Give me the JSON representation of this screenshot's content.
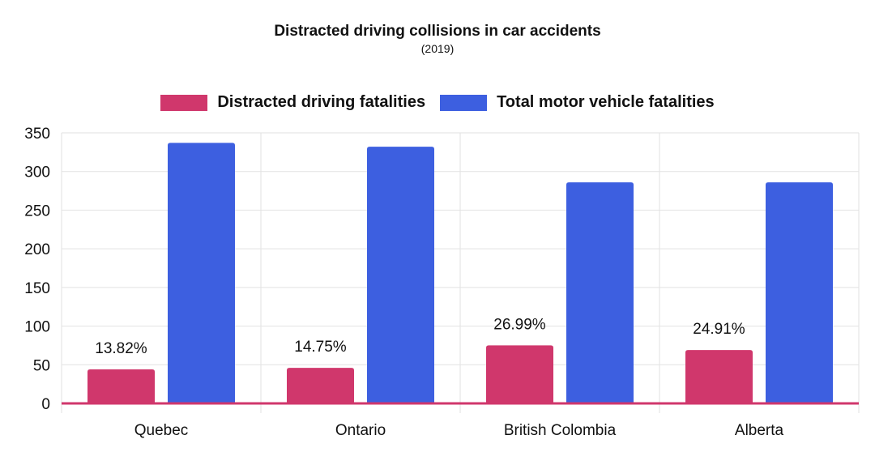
{
  "chart_data": {
    "type": "bar",
    "title": "Distracted driving collisions in car accidents",
    "subtitle": "(2019)",
    "categories": [
      "Quebec",
      "Ontario",
      "British Colombia",
      "Alberta"
    ],
    "series": [
      {
        "name": "Distracted driving fatalities",
        "color": "#d0376c",
        "values": [
          44,
          46,
          75,
          69
        ]
      },
      {
        "name": "Total motor vehicle fatalities",
        "color": "#3d5fe0",
        "values": [
          337,
          332,
          286,
          286
        ]
      }
    ],
    "annotations": [
      "13.82%",
      "14.75%",
      "26.99%",
      "24.91%"
    ],
    "ylim": [
      0,
      350
    ],
    "yticks": [
      0,
      50,
      100,
      150,
      200,
      250,
      300,
      350
    ],
    "xlabel": "",
    "ylabel": "",
    "legend_position": "top-center",
    "grid": true
  }
}
